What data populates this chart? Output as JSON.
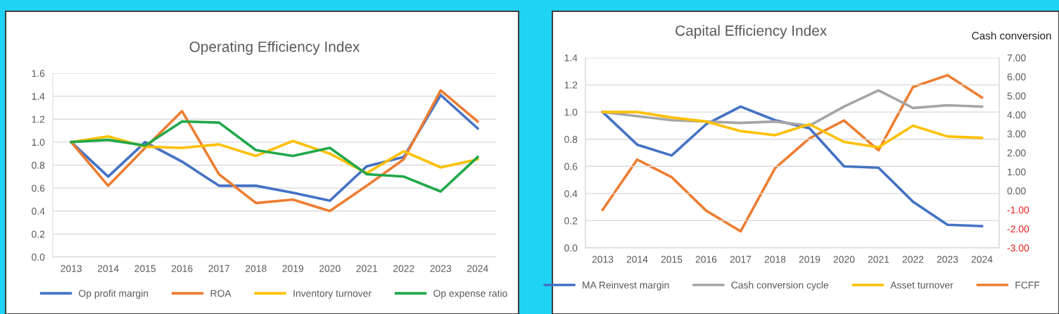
{
  "chart_data": [
    {
      "type": "line",
      "title": "Operating Efficiency Index",
      "categories": [
        "2013",
        "2014",
        "2015",
        "2016",
        "2017",
        "2018",
        "2019",
        "2020",
        "2021",
        "2022",
        "2023",
        "2024"
      ],
      "series": [
        {
          "name": "Op profit margin",
          "color": "#4472c4",
          "values": [
            1.0,
            0.7,
            1.0,
            0.83,
            0.62,
            0.62,
            0.56,
            0.49,
            0.79,
            0.87,
            1.41,
            1.12
          ]
        },
        {
          "name": "ROA",
          "color": "#ed7d31",
          "values": [
            1.0,
            0.62,
            0.95,
            1.27,
            0.72,
            0.47,
            0.5,
            0.4,
            0.62,
            0.85,
            1.45,
            1.18
          ]
        },
        {
          "name": "Inventory turnover",
          "color": "#ffc000",
          "values": [
            1.0,
            1.05,
            0.96,
            0.95,
            0.98,
            0.88,
            1.01,
            0.9,
            0.73,
            0.92,
            0.78,
            0.85
          ]
        },
        {
          "name": "Op expense ratio",
          "color": "#21a84a",
          "values": [
            1.0,
            1.02,
            0.97,
            1.18,
            1.17,
            0.93,
            0.88,
            0.95,
            0.72,
            0.7,
            0.57,
            0.87
          ]
        }
      ],
      "ylim": [
        0,
        1.6
      ],
      "yticks": [
        {
          "value": 0,
          "label": "0.0"
        },
        {
          "value": 0.2,
          "label": "0.2"
        },
        {
          "value": 0.4,
          "label": "0.4"
        },
        {
          "value": 0.6,
          "label": "0.6"
        },
        {
          "value": 0.8,
          "label": "0.8"
        },
        {
          "value": 1.0,
          "label": "1.0"
        },
        {
          "value": 1.2,
          "label": "1.2"
        },
        {
          "value": 1.4,
          "label": "1.4"
        },
        {
          "value": 1.6,
          "label": "1.6"
        }
      ],
      "grid": "y",
      "legend": "bottom",
      "marker": "none",
      "line_style": "solid"
    },
    {
      "type": "line",
      "title": "Capital Efficiency Index",
      "y2label": "Cash conversion",
      "categories": [
        "2013",
        "2014",
        "2015",
        "2016",
        "2017",
        "2018",
        "2019",
        "2020",
        "2021",
        "2022",
        "2023",
        "2024"
      ],
      "series": [
        {
          "name": "MA Reinvest margin",
          "color": "#4472c4",
          "values": [
            1.0,
            0.76,
            0.68,
            0.91,
            1.04,
            0.94,
            0.88,
            0.6,
            0.59,
            0.34,
            0.17,
            0.16
          ]
        },
        {
          "name": "Cash conversion cycle",
          "color": "#a5a5a5",
          "values": [
            1.0,
            0.97,
            0.94,
            0.93,
            0.92,
            0.93,
            0.9,
            1.04,
            1.16,
            1.03,
            1.05,
            1.04
          ]
        },
        {
          "name": "Asset turnover",
          "color": "#ffc000",
          "values": [
            1.0,
            1.0,
            0.96,
            0.93,
            0.86,
            0.83,
            0.91,
            0.78,
            0.74,
            0.9,
            0.82,
            0.81
          ]
        },
        {
          "name": "FCFF",
          "color": "#ed7d31",
          "axis": "y2",
          "values": [
            -1.0,
            1.64,
            0.72,
            -1.04,
            -2.13,
            1.19,
            2.76,
            3.7,
            2.13,
            5.46,
            6.08,
            4.91
          ]
        }
      ],
      "ylim": [
        0,
        1.4
      ],
      "yticks": [
        {
          "value": 0,
          "label": "0.0"
        },
        {
          "value": 0.2,
          "label": "0.2"
        },
        {
          "value": 0.4,
          "label": "0.4"
        },
        {
          "value": 0.6,
          "label": "0.6"
        },
        {
          "value": 0.8,
          "label": "0.8"
        },
        {
          "value": 1.0,
          "label": "1.0"
        },
        {
          "value": 1.2,
          "label": "1.2"
        },
        {
          "value": 1.4,
          "label": "1.4"
        }
      ],
      "y2lim": [
        -3,
        7
      ],
      "y2ticks": [
        {
          "value": -3,
          "label": "-3.00"
        },
        {
          "value": -2,
          "label": "-2.00"
        },
        {
          "value": -1,
          "label": "-1.00"
        },
        {
          "value": 0,
          "label": "0.00"
        },
        {
          "value": 1,
          "label": "1.00"
        },
        {
          "value": 2,
          "label": "2.00"
        },
        {
          "value": 3,
          "label": "3.00"
        },
        {
          "value": 4,
          "label": "4.00"
        },
        {
          "value": 5,
          "label": "5.00"
        },
        {
          "value": 6,
          "label": "6.00"
        },
        {
          "value": 7,
          "label": "7.00"
        }
      ],
      "grid": "y",
      "legend": "bottom",
      "marker": "none",
      "line_style": "solid"
    }
  ]
}
